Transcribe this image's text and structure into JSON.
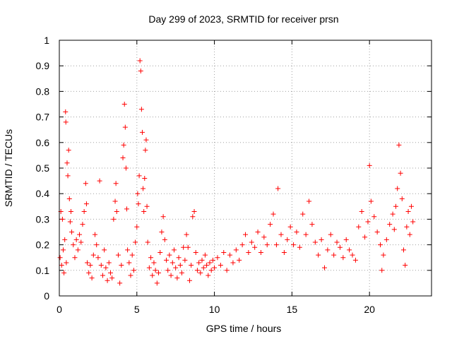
{
  "chart_data": {
    "type": "scatter",
    "title": "Day 299 of 2023, SRMTID for receiver prsn",
    "xlabel": "GPS time / hours",
    "ylabel": "SRMTID / TECUs",
    "xlim": [
      0,
      24
    ],
    "ylim": [
      0,
      1
    ],
    "xticks": [
      0,
      5,
      10,
      15,
      20
    ],
    "xtick_labels": [
      "0",
      "5",
      "10",
      "15",
      "20"
    ],
    "yticks": [
      0,
      0.1,
      0.2,
      0.3,
      0.4,
      0.5,
      0.6,
      0.7,
      0.8,
      0.9,
      1
    ],
    "ytick_labels": [
      "0",
      "0.1",
      "0.2",
      "0.3",
      "0.4",
      "0.5",
      "0.6",
      "0.7",
      "0.8",
      "0.9",
      "1"
    ],
    "grid": true,
    "marker": "+",
    "color": "#ff0000",
    "series": [
      {
        "name": "SRMTID",
        "points": [
          [
            0.05,
            0.15
          ],
          [
            0.1,
            0.33
          ],
          [
            0.15,
            0.12
          ],
          [
            0.2,
            0.3
          ],
          [
            0.25,
            0.18
          ],
          [
            0.3,
            0.09
          ],
          [
            0.35,
            0.22
          ],
          [
            0.4,
            0.72
          ],
          [
            0.42,
            0.68
          ],
          [
            0.45,
            0.13
          ],
          [
            0.5,
            0.52
          ],
          [
            0.55,
            0.47
          ],
          [
            0.6,
            0.57
          ],
          [
            0.65,
            0.38
          ],
          [
            0.7,
            0.29
          ],
          [
            0.75,
            0.33
          ],
          [
            0.8,
            0.25
          ],
          [
            0.9,
            0.2
          ],
          [
            1.0,
            0.15
          ],
          [
            1.1,
            0.22
          ],
          [
            1.2,
            0.18
          ],
          [
            1.3,
            0.24
          ],
          [
            1.4,
            0.21
          ],
          [
            1.5,
            0.28
          ],
          [
            1.6,
            0.33
          ],
          [
            1.7,
            0.44
          ],
          [
            1.75,
            0.36
          ],
          [
            1.8,
            0.13
          ],
          [
            1.9,
            0.09
          ],
          [
            2.0,
            0.12
          ],
          [
            2.1,
            0.07
          ],
          [
            2.2,
            0.16
          ],
          [
            2.3,
            0.24
          ],
          [
            2.4,
            0.2
          ],
          [
            2.5,
            0.15
          ],
          [
            2.6,
            0.45
          ],
          [
            2.7,
            0.12
          ],
          [
            2.8,
            0.08
          ],
          [
            2.9,
            0.18
          ],
          [
            3.0,
            0.11
          ],
          [
            3.1,
            0.06
          ],
          [
            3.2,
            0.13
          ],
          [
            3.3,
            0.09
          ],
          [
            3.4,
            0.07
          ],
          [
            3.5,
            0.3
          ],
          [
            3.6,
            0.37
          ],
          [
            3.65,
            0.44
          ],
          [
            3.7,
            0.33
          ],
          [
            3.8,
            0.16
          ],
          [
            3.9,
            0.05
          ],
          [
            4.0,
            0.12
          ],
          [
            4.1,
            0.54
          ],
          [
            4.15,
            0.59
          ],
          [
            4.2,
            0.75
          ],
          [
            4.25,
            0.66
          ],
          [
            4.3,
            0.5
          ],
          [
            4.35,
            0.34
          ],
          [
            4.4,
            0.18
          ],
          [
            4.5,
            0.13
          ],
          [
            4.6,
            0.08
          ],
          [
            4.7,
            0.16
          ],
          [
            4.8,
            0.1
          ],
          [
            4.9,
            0.21
          ],
          [
            5.0,
            0.27
          ],
          [
            5.05,
            0.4
          ],
          [
            5.1,
            0.36
          ],
          [
            5.15,
            0.47
          ],
          [
            5.2,
            0.92
          ],
          [
            5.25,
            0.88
          ],
          [
            5.3,
            0.73
          ],
          [
            5.35,
            0.64
          ],
          [
            5.4,
            0.42
          ],
          [
            5.45,
            0.33
          ],
          [
            5.5,
            0.46
          ],
          [
            5.55,
            0.57
          ],
          [
            5.6,
            0.61
          ],
          [
            5.65,
            0.35
          ],
          [
            5.7,
            0.21
          ],
          [
            5.8,
            0.11
          ],
          [
            5.9,
            0.15
          ],
          [
            6.0,
            0.08
          ],
          [
            6.1,
            0.13
          ],
          [
            6.2,
            0.1
          ],
          [
            6.3,
            0.05
          ],
          [
            6.4,
            0.09
          ],
          [
            6.5,
            0.17
          ],
          [
            6.6,
            0.25
          ],
          [
            6.7,
            0.31
          ],
          [
            6.8,
            0.22
          ],
          [
            6.9,
            0.14
          ],
          [
            7.0,
            0.1
          ],
          [
            7.1,
            0.16
          ],
          [
            7.2,
            0.08
          ],
          [
            7.3,
            0.13
          ],
          [
            7.4,
            0.18
          ],
          [
            7.5,
            0.11
          ],
          [
            7.6,
            0.07
          ],
          [
            7.7,
            0.15
          ],
          [
            7.8,
            0.12
          ],
          [
            7.9,
            0.09
          ],
          [
            8.0,
            0.19
          ],
          [
            8.1,
            0.14
          ],
          [
            8.2,
            0.24
          ],
          [
            8.3,
            0.19
          ],
          [
            8.4,
            0.06
          ],
          [
            8.5,
            0.12
          ],
          [
            8.6,
            0.31
          ],
          [
            8.7,
            0.33
          ],
          [
            8.8,
            0.17
          ],
          [
            8.9,
            0.1
          ],
          [
            9.0,
            0.13
          ],
          [
            9.1,
            0.09
          ],
          [
            9.2,
            0.14
          ],
          [
            9.3,
            0.11
          ],
          [
            9.4,
            0.16
          ],
          [
            9.5,
            0.12
          ],
          [
            9.6,
            0.08
          ],
          [
            9.7,
            0.13
          ],
          [
            9.8,
            0.1
          ],
          [
            9.9,
            0.14
          ],
          [
            10.0,
            0.11
          ],
          [
            10.2,
            0.15
          ],
          [
            10.4,
            0.12
          ],
          [
            10.6,
            0.17
          ],
          [
            10.8,
            0.1
          ],
          [
            11.0,
            0.16
          ],
          [
            11.2,
            0.13
          ],
          [
            11.4,
            0.18
          ],
          [
            11.6,
            0.14
          ],
          [
            11.8,
            0.2
          ],
          [
            12.0,
            0.24
          ],
          [
            12.2,
            0.17
          ],
          [
            12.4,
            0.21
          ],
          [
            12.6,
            0.19
          ],
          [
            12.8,
            0.25
          ],
          [
            13.0,
            0.17
          ],
          [
            13.2,
            0.23
          ],
          [
            13.4,
            0.2
          ],
          [
            13.6,
            0.28
          ],
          [
            13.8,
            0.32
          ],
          [
            14.0,
            0.2
          ],
          [
            14.1,
            0.42
          ],
          [
            14.3,
            0.24
          ],
          [
            14.5,
            0.17
          ],
          [
            14.7,
            0.22
          ],
          [
            14.9,
            0.27
          ],
          [
            15.1,
            0.2
          ],
          [
            15.3,
            0.25
          ],
          [
            15.5,
            0.19
          ],
          [
            15.7,
            0.32
          ],
          [
            15.9,
            0.24
          ],
          [
            16.1,
            0.37
          ],
          [
            16.3,
            0.28
          ],
          [
            16.5,
            0.21
          ],
          [
            16.7,
            0.16
          ],
          [
            16.9,
            0.22
          ],
          [
            17.1,
            0.11
          ],
          [
            17.3,
            0.18
          ],
          [
            17.5,
            0.24
          ],
          [
            17.7,
            0.16
          ],
          [
            17.9,
            0.21
          ],
          [
            18.1,
            0.19
          ],
          [
            18.3,
            0.15
          ],
          [
            18.5,
            0.22
          ],
          [
            18.7,
            0.18
          ],
          [
            18.9,
            0.16
          ],
          [
            19.1,
            0.14
          ],
          [
            19.3,
            0.27
          ],
          [
            19.5,
            0.33
          ],
          [
            19.7,
            0.23
          ],
          [
            19.9,
            0.29
          ],
          [
            20.0,
            0.51
          ],
          [
            20.1,
            0.37
          ],
          [
            20.3,
            0.31
          ],
          [
            20.5,
            0.25
          ],
          [
            20.7,
            0.2
          ],
          [
            20.8,
            0.1
          ],
          [
            20.9,
            0.16
          ],
          [
            21.1,
            0.22
          ],
          [
            21.3,
            0.28
          ],
          [
            21.5,
            0.32
          ],
          [
            21.6,
            0.26
          ],
          [
            21.7,
            0.35
          ],
          [
            21.8,
            0.42
          ],
          [
            21.9,
            0.59
          ],
          [
            22.0,
            0.48
          ],
          [
            22.1,
            0.38
          ],
          [
            22.2,
            0.18
          ],
          [
            22.3,
            0.12
          ],
          [
            22.4,
            0.27
          ],
          [
            22.5,
            0.33
          ],
          [
            22.6,
            0.24
          ],
          [
            22.7,
            0.35
          ],
          [
            22.8,
            0.29
          ]
        ]
      }
    ]
  }
}
